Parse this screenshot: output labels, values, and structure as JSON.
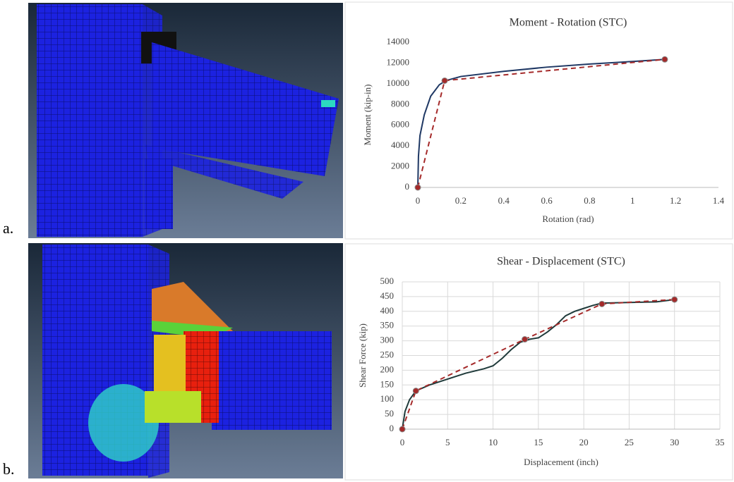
{
  "panel_labels": [
    "a.",
    "b."
  ],
  "chart_data": [
    {
      "type": "line",
      "title": "Moment - Rotation (STC)",
      "xlabel": "Rotation (rad)",
      "ylabel": "Moment (kip-in)",
      "xlim": [
        0,
        1.4
      ],
      "xticks": [
        0,
        0.2,
        0.4,
        0.6,
        0.8,
        1,
        1.2,
        1.4
      ],
      "ylim": [
        0,
        14000
      ],
      "yticks": [
        0,
        2000,
        4000,
        6000,
        8000,
        10000,
        12000,
        14000
      ],
      "grid": false,
      "series": [
        {
          "color": "#1f3864",
          "style": "solid",
          "x": [
            0,
            0.003,
            0.01,
            0.03,
            0.06,
            0.1,
            0.13,
            0.2,
            0.4,
            0.6,
            0.8,
            1.0,
            1.15
          ],
          "values": [
            0,
            3000,
            5000,
            7000,
            8800,
            9900,
            10300,
            10700,
            11200,
            11600,
            11900,
            12150,
            12350
          ]
        },
        {
          "color": "#a52a2a",
          "style": "dashed",
          "marker": "circle",
          "x": [
            0,
            0.125,
            1.15
          ],
          "values": [
            0,
            10300,
            12350
          ]
        }
      ]
    },
    {
      "type": "line",
      "title": "Shear - Displacement (STC)",
      "xlabel": "Displacement (inch)",
      "ylabel": "Shear Force (kip)",
      "xlim": [
        0,
        35
      ],
      "xticks": [
        0,
        5,
        10,
        15,
        20,
        25,
        30,
        35
      ],
      "ylim": [
        0,
        500
      ],
      "yticks": [
        0,
        50,
        100,
        150,
        200,
        250,
        300,
        350,
        400,
        450,
        500
      ],
      "grid": true,
      "series": [
        {
          "color": "#1f3a3a",
          "style": "solid",
          "x": [
            0,
            0.3,
            0.8,
            1.5,
            3,
            5,
            7,
            9,
            10,
            11,
            12,
            13,
            14,
            15,
            16,
            17,
            18,
            19,
            20,
            21,
            22,
            25,
            28,
            30
          ],
          "values": [
            0,
            60,
            100,
            130,
            150,
            170,
            190,
            205,
            215,
            240,
            270,
            295,
            305,
            310,
            330,
            355,
            385,
            400,
            410,
            420,
            428,
            430,
            432,
            440
          ]
        },
        {
          "color": "#a52a2a",
          "style": "dashed",
          "marker": "circle",
          "x": [
            0,
            1.5,
            13.5,
            22,
            30
          ],
          "values": [
            0,
            130,
            305,
            425,
            440
          ]
        }
      ]
    }
  ]
}
